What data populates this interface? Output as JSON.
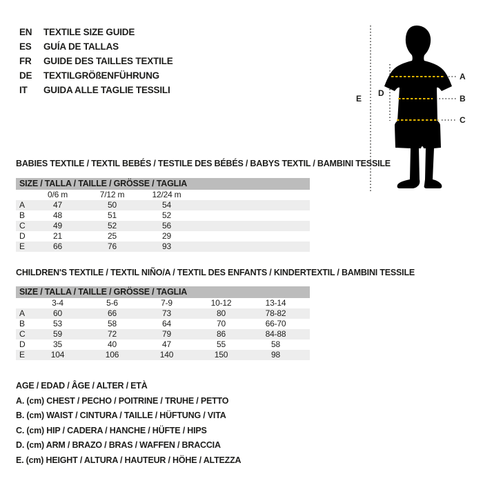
{
  "colors": {
    "ink": "#1d1d1b",
    "size_bar_gray": "#bcbcbc",
    "row_stripe_gray": "#ededed",
    "measure_dash_yellow": "#e2b400",
    "silhouette_black": "#000000"
  },
  "languages": [
    {
      "code": "EN",
      "title": "TEXTILE SIZE GUIDE"
    },
    {
      "code": "ES",
      "title": "GUÍA DE TALLAS"
    },
    {
      "code": "FR",
      "title": "GUIDE DES TAILLES TEXTILE"
    },
    {
      "code": "DE",
      "title": "TEXTILGRÖßENFÜHRUNG"
    },
    {
      "code": "IT",
      "title": "GUIDA ALLE TAGLIE TESSILI"
    }
  ],
  "figure": {
    "labels": {
      "A": "A",
      "B": "B",
      "C": "C",
      "D": "D",
      "E": "E"
    }
  },
  "babies": {
    "title": "BABIES TEXTILE / TEXTIL BEBÉS / TESTILE DES BÉBÉS / BABYS TEXTIL / BAMBINI TESSILE",
    "size_header": "SIZE / TALLA / TAILLE / GRÖSSE / TAGLIA",
    "columns": [
      "0/6 m",
      "7/12 m",
      "12/24 m"
    ],
    "rows": [
      {
        "label": "A",
        "values": [
          "47",
          "50",
          "54"
        ]
      },
      {
        "label": "B",
        "values": [
          "48",
          "51",
          "52"
        ]
      },
      {
        "label": "C",
        "values": [
          "49",
          "52",
          "56"
        ]
      },
      {
        "label": "D",
        "values": [
          "21",
          "25",
          "29"
        ]
      },
      {
        "label": "E",
        "values": [
          "66",
          "76",
          "93"
        ]
      }
    ]
  },
  "children": {
    "title": "CHILDREN'S TEXTILE / TEXTIL NIÑO/A / TEXTIL DES ENFANTS / KINDERTEXTIL / BAMBINI TESSILE",
    "size_header": "SIZE / TALLA / TAILLE / GRÖSSE / TAGLIA",
    "columns": [
      "3-4",
      "5-6",
      "7-9",
      "10-12",
      "13-14"
    ],
    "rows": [
      {
        "label": "A",
        "values": [
          "60",
          "66",
          "73",
          "80",
          "78-82"
        ]
      },
      {
        "label": "B",
        "values": [
          "53",
          "58",
          "64",
          "70",
          "66-70"
        ]
      },
      {
        "label": "C",
        "values": [
          "59",
          "72",
          "79",
          "86",
          "84-88"
        ]
      },
      {
        "label": "D",
        "values": [
          "35",
          "40",
          "47",
          "55",
          "58"
        ]
      },
      {
        "label": "E",
        "values": [
          "104",
          "106",
          "140",
          "150",
          "98"
        ]
      }
    ]
  },
  "legend": [
    "AGE / EDAD / ÂGE / ALTER / ETÀ",
    "A. (cm) CHEST / PECHO / POITRINE / TRUHE / PETTO",
    "B. (cm) WAIST / CINTURA / TAILLE / HÜFTUNG / VITA",
    "C. (cm) HIP / CADERA / HANCHE / HÜFTE / HIPS",
    "D. (cm) ARM / BRAZO / BRAS / WAFFEN / BRACCIA",
    "E. (cm) HEIGHT / ALTURA / HAUTEUR / HÖHE / ALTEZZA"
  ]
}
